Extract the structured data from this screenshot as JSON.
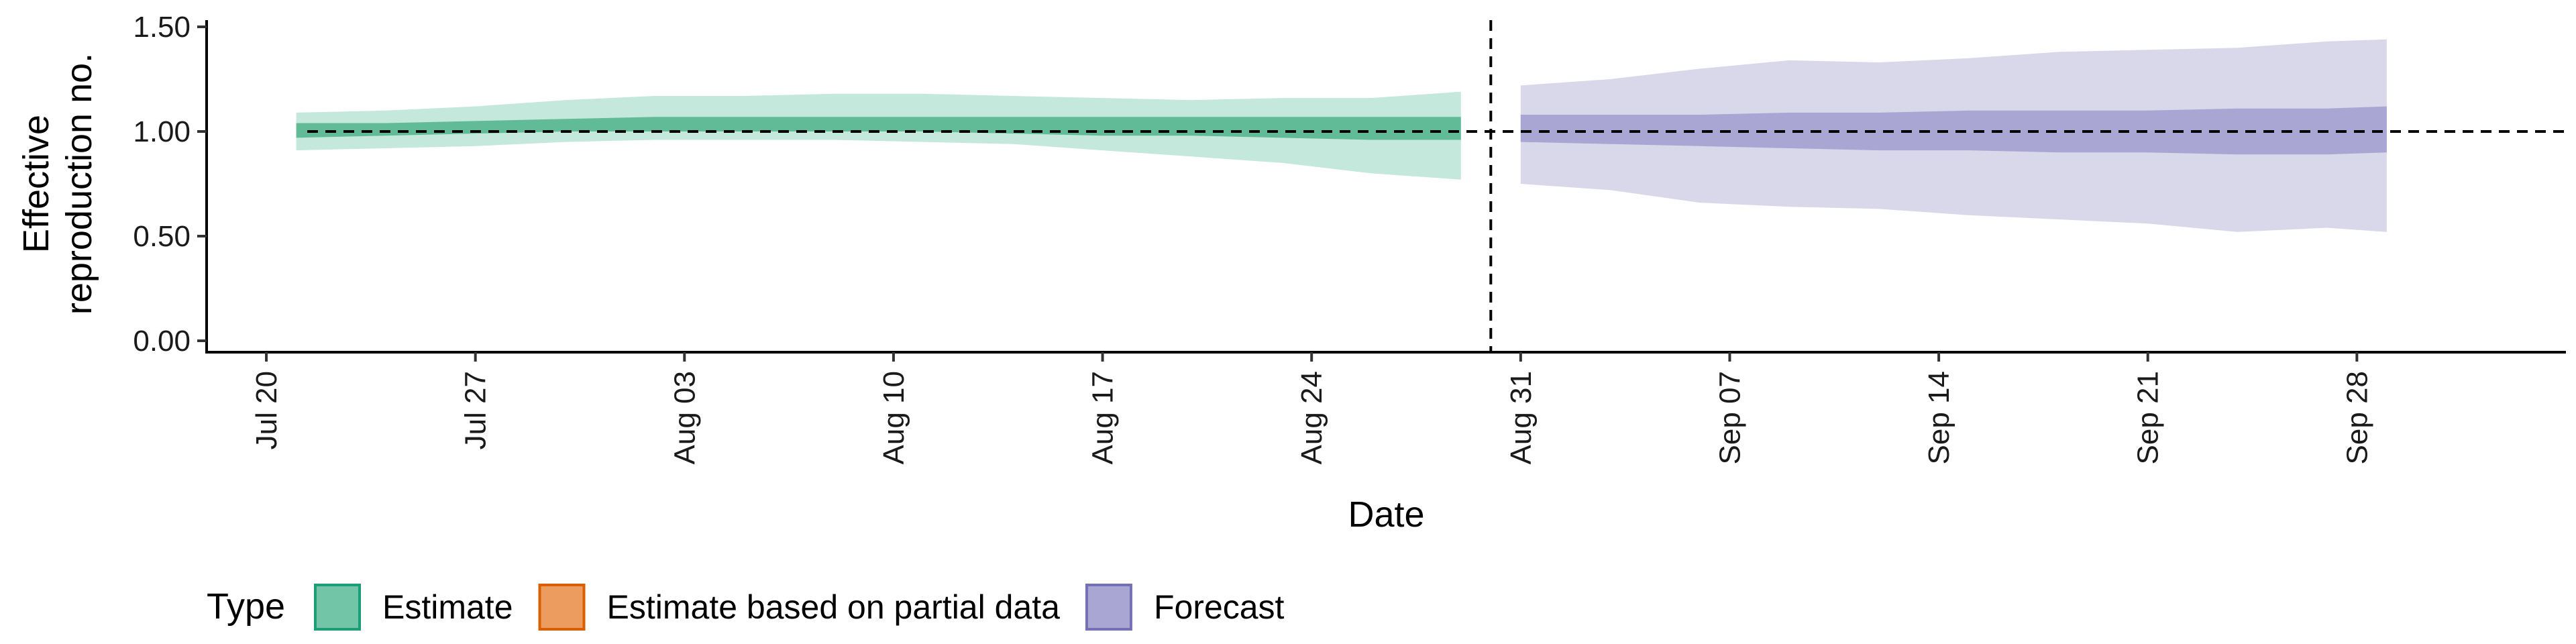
{
  "chart_data": {
    "type": "area",
    "xlabel": "Date",
    "ylabel_lines": [
      "Effective",
      "reproduction no."
    ],
    "x_ticks": [
      "Jul 20",
      "Jul 27",
      "Aug 03",
      "Aug 10",
      "Aug 17",
      "Aug 24",
      "Aug 31",
      "Sep 07",
      "Sep 14",
      "Sep 21",
      "Sep 28"
    ],
    "x_tick_dates": [
      "2020-07-20",
      "2020-07-27",
      "2020-08-03",
      "2020-08-10",
      "2020-08-17",
      "2020-08-24",
      "2020-08-31",
      "2020-09-07",
      "2020-09-14",
      "2020-09-21",
      "2020-09-28"
    ],
    "x_range": [
      "2020-07-18",
      "2020-10-05"
    ],
    "y_ticks": [
      0.0,
      0.5,
      1.0,
      1.5
    ],
    "y_tick_labels": [
      "0.00",
      "0.50",
      "1.00",
      "1.50"
    ],
    "ylim": [
      0.0,
      1.5
    ],
    "reference_hline": 1.0,
    "forecast_date": "2020-08-30",
    "grid": false,
    "legend": {
      "title": "Type",
      "position": "bottom-left",
      "entries": [
        {
          "label": "Estimate",
          "fill": "#73c5a8",
          "border": "#1b9e77"
        },
        {
          "label": "Estimate based on partial data",
          "fill": "#eb9c5e",
          "border": "#d95f02"
        },
        {
          "label": "Forecast",
          "fill": "#a9a6d3",
          "border": "#7570b3"
        }
      ]
    },
    "series": [
      {
        "name": "Estimate",
        "outer_color": "#c5e8dc",
        "inner_color": "#62bb97",
        "dates": [
          "2020-07-21",
          "2020-07-24",
          "2020-07-27",
          "2020-07-30",
          "2020-08-02",
          "2020-08-05",
          "2020-08-08",
          "2020-08-11",
          "2020-08-14",
          "2020-08-17",
          "2020-08-20",
          "2020-08-23",
          "2020-08-26",
          "2020-08-29"
        ],
        "lower90": [
          0.91,
          0.92,
          0.93,
          0.95,
          0.96,
          0.96,
          0.96,
          0.95,
          0.94,
          0.91,
          0.88,
          0.85,
          0.8,
          0.77
        ],
        "upper90": [
          1.09,
          1.1,
          1.12,
          1.15,
          1.17,
          1.17,
          1.18,
          1.18,
          1.17,
          1.16,
          1.15,
          1.16,
          1.16,
          1.19
        ],
        "lower50": [
          0.97,
          0.98,
          0.99,
          1.0,
          1.0,
          1.0,
          1.0,
          1.0,
          0.99,
          0.98,
          0.98,
          0.97,
          0.96,
          0.96
        ],
        "upper50": [
          1.04,
          1.04,
          1.05,
          1.06,
          1.07,
          1.07,
          1.07,
          1.07,
          1.07,
          1.07,
          1.07,
          1.07,
          1.07,
          1.07
        ]
      },
      {
        "name": "Forecast",
        "outer_color": "#d9d8eb",
        "inner_color": "#a9a6d3",
        "dates": [
          "2020-08-31",
          "2020-09-03",
          "2020-09-06",
          "2020-09-09",
          "2020-09-12",
          "2020-09-15",
          "2020-09-18",
          "2020-09-21",
          "2020-09-24",
          "2020-09-27",
          "2020-09-29"
        ],
        "lower90": [
          0.75,
          0.72,
          0.66,
          0.64,
          0.63,
          0.6,
          0.58,
          0.56,
          0.52,
          0.54,
          0.52
        ],
        "upper90": [
          1.22,
          1.25,
          1.3,
          1.34,
          1.33,
          1.35,
          1.38,
          1.39,
          1.4,
          1.43,
          1.44
        ],
        "lower50": [
          0.95,
          0.94,
          0.93,
          0.92,
          0.91,
          0.91,
          0.9,
          0.9,
          0.89,
          0.89,
          0.9
        ],
        "upper50": [
          1.08,
          1.08,
          1.08,
          1.09,
          1.09,
          1.1,
          1.1,
          1.1,
          1.11,
          1.11,
          1.12
        ]
      }
    ]
  }
}
